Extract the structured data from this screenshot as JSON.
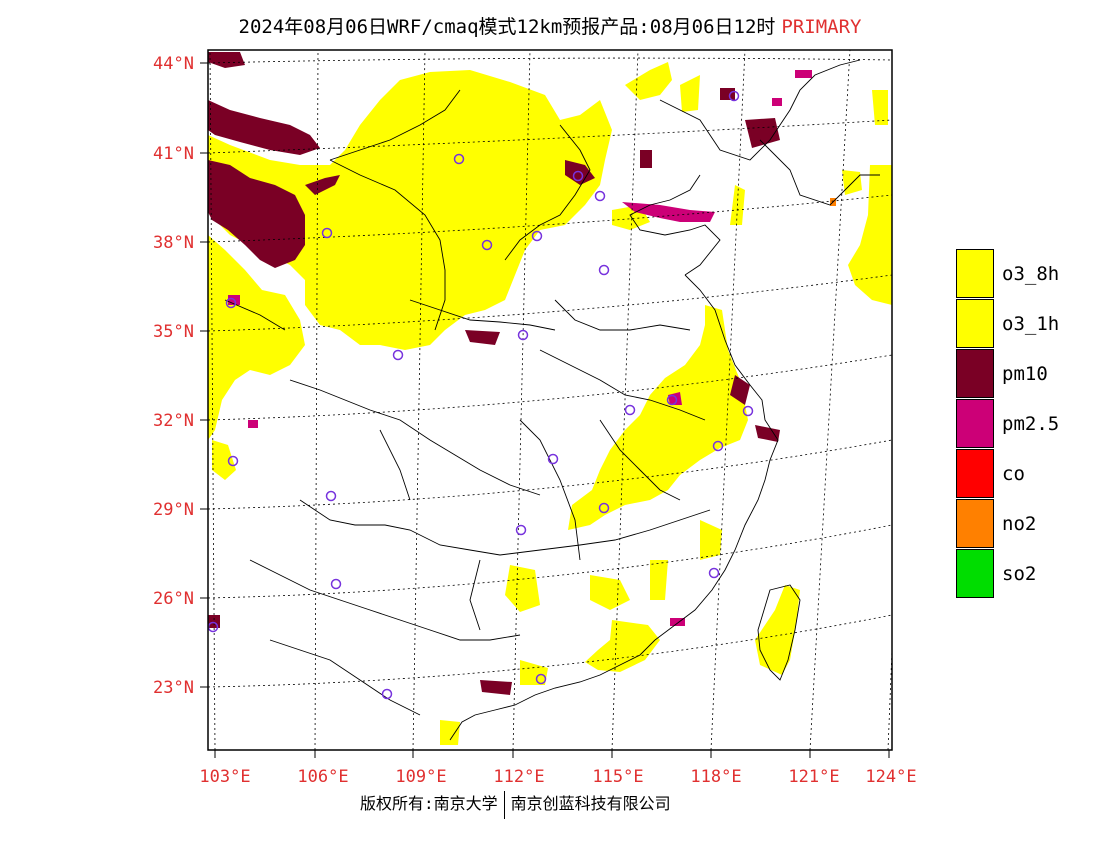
{
  "title": {
    "text": "2024年08月06日WRF/cmaq模式12km预报产品:08月06日12时",
    "tag": "PRIMARY",
    "tag_color": "#e03030"
  },
  "axes": {
    "lat_labels": [
      "44°N",
      "41°N",
      "38°N",
      "35°N",
      "32°N",
      "29°N",
      "26°N",
      "23°N"
    ],
    "lon_labels": [
      "103°E",
      "106°E",
      "109°E",
      "112°E",
      "115°E",
      "118°E",
      "121°E",
      "124°E"
    ],
    "label_color": "#e03030"
  },
  "legend": {
    "items": [
      {
        "label": "o3_8h",
        "color": "#ffff00"
      },
      {
        "label": "o3_1h",
        "color": "#ffff00"
      },
      {
        "label": "pm10",
        "color": "#7a0025"
      },
      {
        "label": "pm2.5",
        "color": "#cc0077"
      },
      {
        "label": "co",
        "color": "#ff0000"
      },
      {
        "label": "no2",
        "color": "#ff8000"
      },
      {
        "label": "so2",
        "color": "#00dd00"
      }
    ]
  },
  "footer": {
    "left": "版权所有:南京大学",
    "right": "南京创蓝科技有限公司"
  }
}
